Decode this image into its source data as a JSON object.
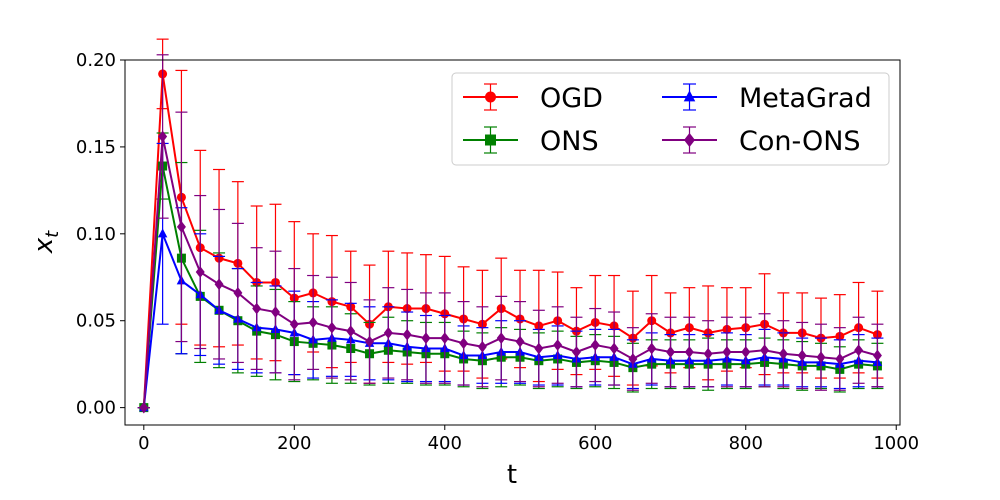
{
  "chart_data": {
    "type": "line",
    "title": "",
    "xlabel": "t",
    "ylabel": "x_t",
    "xlim": [
      -25,
      1005
    ],
    "ylim": [
      -0.01,
      0.2
    ],
    "xticks": [
      "0",
      "200",
      "400",
      "600",
      "800",
      "1000"
    ],
    "yticks": [
      "0.00",
      "0.05",
      "0.10",
      "0.15",
      "0.20"
    ],
    "grid": false,
    "legend_position": "top-right",
    "x": [
      0,
      25,
      50,
      75,
      100,
      125,
      150,
      175,
      200,
      225,
      250,
      275,
      300,
      325,
      350,
      375,
      400,
      425,
      450,
      475,
      500,
      525,
      550,
      575,
      600,
      625,
      650,
      675,
      700,
      725,
      750,
      775,
      800,
      825,
      850,
      875,
      900,
      925,
      950,
      975
    ],
    "series": [
      {
        "name": "OGD",
        "color": "#ff0000",
        "marker": "circle",
        "values": [
          0,
          0.192,
          0.121,
          0.092,
          0.086,
          0.083,
          0.072,
          0.072,
          0.063,
          0.066,
          0.061,
          0.058,
          0.048,
          0.058,
          0.057,
          0.057,
          0.054,
          0.051,
          0.048,
          0.057,
          0.051,
          0.047,
          0.05,
          0.044,
          0.049,
          0.047,
          0.04,
          0.05,
          0.043,
          0.046,
          0.043,
          0.045,
          0.046,
          0.048,
          0.043,
          0.043,
          0.04,
          0.041,
          0.046,
          0.042
        ],
        "upper": [
          0,
          0.212,
          0.194,
          0.148,
          0.137,
          0.13,
          0.116,
          0.117,
          0.107,
          0.1,
          0.099,
          0.09,
          0.082,
          0.09,
          0.089,
          0.088,
          0.087,
          0.081,
          0.079,
          0.086,
          0.079,
          0.079,
          0.078,
          0.069,
          0.076,
          0.076,
          0.067,
          0.076,
          0.066,
          0.069,
          0.07,
          0.069,
          0.069,
          0.077,
          0.066,
          0.066,
          0.063,
          0.065,
          0.072,
          0.067
        ],
        "lower": [
          0,
          0.172,
          0.048,
          0.036,
          0.035,
          0.036,
          0.028,
          0.027,
          0.019,
          0.032,
          0.023,
          0.026,
          0.014,
          0.026,
          0.025,
          0.026,
          0.021,
          0.021,
          0.017,
          0.028,
          0.023,
          0.015,
          0.022,
          0.019,
          0.022,
          0.018,
          0.013,
          0.024,
          0.02,
          0.023,
          0.016,
          0.021,
          0.023,
          0.019,
          0.02,
          0.02,
          0.017,
          0.017,
          0.02,
          0.017
        ]
      },
      {
        "name": "ONS",
        "color": "#008000",
        "marker": "square",
        "values": [
          0,
          0.139,
          0.086,
          0.064,
          0.056,
          0.05,
          0.044,
          0.042,
          0.038,
          0.037,
          0.036,
          0.034,
          0.031,
          0.033,
          0.032,
          0.031,
          0.031,
          0.028,
          0.027,
          0.029,
          0.029,
          0.027,
          0.028,
          0.026,
          0.027,
          0.026,
          0.023,
          0.025,
          0.025,
          0.025,
          0.025,
          0.025,
          0.025,
          0.026,
          0.025,
          0.024,
          0.024,
          0.022,
          0.025,
          0.024
        ],
        "upper": [
          0,
          0.158,
          0.141,
          0.102,
          0.089,
          0.08,
          0.07,
          0.068,
          0.061,
          0.058,
          0.058,
          0.054,
          0.049,
          0.052,
          0.05,
          0.049,
          0.049,
          0.044,
          0.043,
          0.046,
          0.045,
          0.043,
          0.044,
          0.041,
          0.042,
          0.041,
          0.037,
          0.039,
          0.039,
          0.039,
          0.04,
          0.039,
          0.039,
          0.04,
          0.039,
          0.038,
          0.037,
          0.035,
          0.039,
          0.037
        ],
        "lower": [
          0,
          0.12,
          0.031,
          0.026,
          0.023,
          0.02,
          0.018,
          0.016,
          0.015,
          0.016,
          0.014,
          0.014,
          0.013,
          0.014,
          0.014,
          0.013,
          0.013,
          0.012,
          0.011,
          0.012,
          0.013,
          0.011,
          0.012,
          0.011,
          0.012,
          0.011,
          0.009,
          0.011,
          0.011,
          0.011,
          0.01,
          0.011,
          0.011,
          0.012,
          0.011,
          0.01,
          0.011,
          0.009,
          0.011,
          0.011
        ]
      },
      {
        "name": "MetaGrad",
        "color": "#0000ff",
        "marker": "triangle",
        "values": [
          0,
          0.1,
          0.073,
          0.065,
          0.056,
          0.051,
          0.046,
          0.045,
          0.043,
          0.039,
          0.04,
          0.039,
          0.037,
          0.037,
          0.035,
          0.034,
          0.034,
          0.03,
          0.03,
          0.032,
          0.032,
          0.029,
          0.03,
          0.028,
          0.029,
          0.029,
          0.025,
          0.028,
          0.027,
          0.027,
          0.027,
          0.028,
          0.027,
          0.029,
          0.028,
          0.026,
          0.026,
          0.025,
          0.027,
          0.026
        ],
        "upper": [
          0,
          0.152,
          0.115,
          0.1,
          0.087,
          0.08,
          0.072,
          0.07,
          0.067,
          0.061,
          0.062,
          0.06,
          0.058,
          0.058,
          0.055,
          0.053,
          0.053,
          0.047,
          0.046,
          0.05,
          0.05,
          0.045,
          0.047,
          0.044,
          0.045,
          0.045,
          0.039,
          0.043,
          0.042,
          0.042,
          0.042,
          0.043,
          0.042,
          0.045,
          0.043,
          0.04,
          0.04,
          0.039,
          0.042,
          0.04
        ],
        "lower": [
          0,
          0.048,
          0.031,
          0.03,
          0.025,
          0.022,
          0.02,
          0.02,
          0.019,
          0.017,
          0.018,
          0.018,
          0.016,
          0.016,
          0.015,
          0.015,
          0.015,
          0.013,
          0.014,
          0.014,
          0.014,
          0.013,
          0.013,
          0.012,
          0.013,
          0.013,
          0.011,
          0.013,
          0.012,
          0.012,
          0.012,
          0.013,
          0.012,
          0.013,
          0.013,
          0.012,
          0.012,
          0.011,
          0.012,
          0.012
        ]
      },
      {
        "name": "Con-ONS",
        "color": "#800080",
        "marker": "diamond",
        "values": [
          0,
          0.156,
          0.104,
          0.078,
          0.071,
          0.066,
          0.057,
          0.055,
          0.048,
          0.049,
          0.046,
          0.044,
          0.038,
          0.043,
          0.042,
          0.04,
          0.04,
          0.037,
          0.035,
          0.04,
          0.038,
          0.034,
          0.036,
          0.032,
          0.036,
          0.034,
          0.028,
          0.034,
          0.032,
          0.032,
          0.031,
          0.032,
          0.032,
          0.033,
          0.031,
          0.03,
          0.029,
          0.028,
          0.033,
          0.03
        ],
        "upper": [
          0,
          0.203,
          0.17,
          0.122,
          0.114,
          0.106,
          0.092,
          0.09,
          0.08,
          0.076,
          0.075,
          0.072,
          0.062,
          0.069,
          0.068,
          0.066,
          0.066,
          0.061,
          0.058,
          0.064,
          0.061,
          0.056,
          0.058,
          0.052,
          0.057,
          0.055,
          0.046,
          0.054,
          0.052,
          0.052,
          0.05,
          0.052,
          0.052,
          0.054,
          0.05,
          0.049,
          0.048,
          0.046,
          0.052,
          0.048
        ],
        "lower": [
          0,
          0.109,
          0.038,
          0.034,
          0.028,
          0.026,
          0.022,
          0.02,
          0.016,
          0.022,
          0.017,
          0.016,
          0.014,
          0.017,
          0.016,
          0.014,
          0.014,
          0.013,
          0.012,
          0.016,
          0.015,
          0.012,
          0.014,
          0.012,
          0.015,
          0.013,
          0.01,
          0.014,
          0.012,
          0.012,
          0.012,
          0.012,
          0.012,
          0.012,
          0.012,
          0.011,
          0.01,
          0.01,
          0.014,
          0.012
        ]
      }
    ]
  }
}
